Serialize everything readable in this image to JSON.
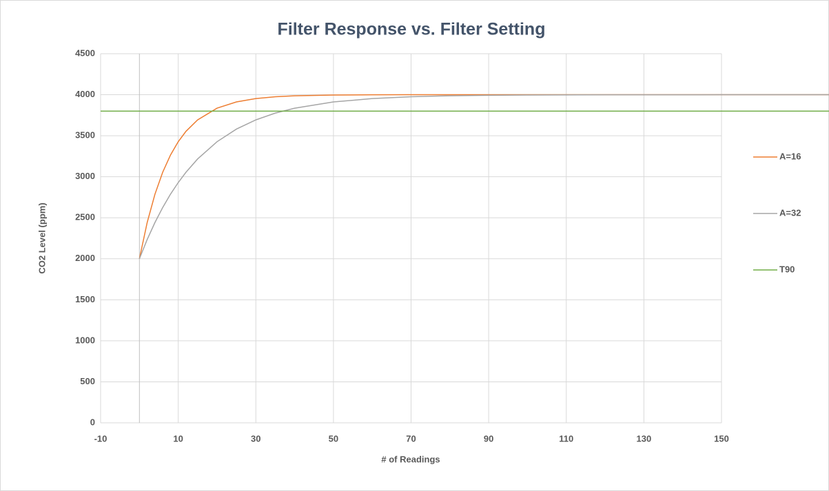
{
  "chart_data": {
    "type": "line",
    "title": "Filter Response vs. Filter Setting",
    "x_label": "# of Readings",
    "y_label": "CO2 Level (ppm)",
    "x": [
      -10,
      0,
      2,
      4,
      6,
      8,
      10,
      12,
      15,
      20,
      25,
      30,
      35,
      40,
      50,
      60,
      70,
      80,
      90,
      100,
      120,
      150,
      178
    ],
    "series": [
      {
        "name": "A=16",
        "color": "#ed7d31",
        "values": [
          null,
          2000,
          2442,
          2787,
          3055,
          3264,
          3427,
          3554,
          3693,
          3836,
          3912,
          3953,
          3975,
          3987,
          3996,
          3999,
          4000,
          4000,
          4000,
          4000,
          4000,
          4000,
          4000
        ]
      },
      {
        "name": "A=32",
        "color": "#a5a5a5",
        "values": [
          null,
          2000,
          2235,
          2442,
          2625,
          2787,
          2929,
          3055,
          3217,
          3427,
          3581,
          3693,
          3776,
          3836,
          3912,
          3953,
          3975,
          3987,
          3993,
          3996,
          3999,
          4000,
          4000
        ]
      },
      {
        "name": "T90",
        "color": "#70ad47",
        "values": [
          3800,
          3800,
          3800,
          3800,
          3800,
          3800,
          3800,
          3800,
          3800,
          3800,
          3800,
          3800,
          3800,
          3800,
          3800,
          3800,
          3800,
          3800,
          3800,
          3800,
          3800,
          3800,
          3800
        ]
      }
    ],
    "xlim": [
      -10,
      150
    ],
    "xticks": [
      -10,
      10,
      30,
      50,
      70,
      90,
      110,
      130,
      150
    ],
    "ylim": [
      0,
      4500
    ],
    "yticks": [
      0,
      500,
      1000,
      1500,
      2000,
      2500,
      3000,
      3500,
      4000,
      4500
    ],
    "grid": true,
    "legend": "right"
  }
}
